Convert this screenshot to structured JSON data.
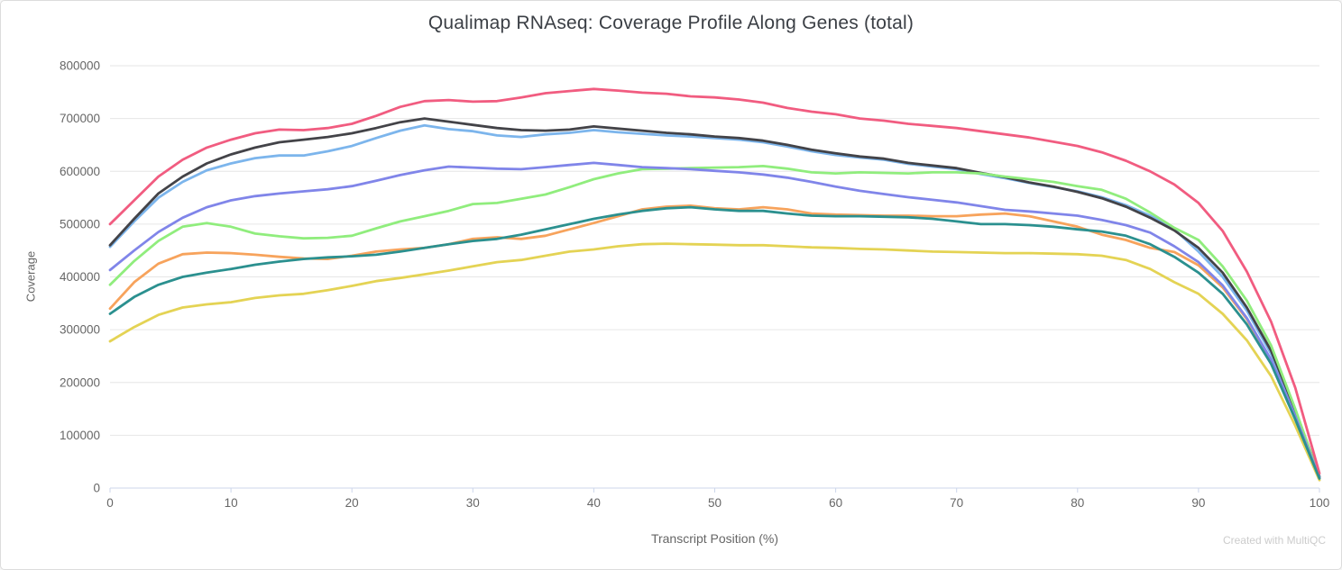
{
  "header": {
    "title": "Qualimap RNAseq: Coverage Profile Along Genes (total)"
  },
  "footer": {
    "watermark": "Created with MultiQC"
  },
  "colors": {
    "background": "#ffffff",
    "card_border": "#dcdcdc",
    "title": "#3b3f45",
    "grid": "#e6e6e6",
    "axis_line": "#ccd6eb",
    "tick_label": "#666666",
    "axis_title": "#666666",
    "watermark": "#cccccc"
  },
  "chart_data": {
    "type": "line",
    "title": "Qualimap RNAseq: Coverage Profile Along Genes (total)",
    "xlabel": "Transcript Position (%)",
    "ylabel": "Coverage",
    "xlim": [
      0,
      100
    ],
    "ylim": [
      0,
      800000
    ],
    "xticks": [
      0,
      10,
      20,
      30,
      40,
      50,
      60,
      70,
      80,
      90,
      100
    ],
    "yticks": [
      0,
      100000,
      200000,
      300000,
      400000,
      500000,
      600000,
      700000,
      800000
    ],
    "grid": "horizontal",
    "legend": "none",
    "line_width": 2.8,
    "x": [
      0,
      2,
      4,
      6,
      8,
      10,
      12,
      14,
      16,
      18,
      20,
      22,
      24,
      26,
      28,
      30,
      32,
      34,
      36,
      38,
      40,
      42,
      44,
      46,
      48,
      50,
      52,
      54,
      56,
      58,
      60,
      62,
      64,
      66,
      68,
      70,
      72,
      74,
      76,
      78,
      80,
      82,
      84,
      86,
      88,
      90,
      92,
      94,
      96,
      98,
      100
    ],
    "series": [
      {
        "id": "light-blue",
        "color": "#7cb5ec",
        "values": [
          457000,
          505000,
          550000,
          580000,
          602000,
          615000,
          625000,
          630000,
          630000,
          638000,
          648000,
          663000,
          677000,
          687000,
          680000,
          676000,
          668000,
          665000,
          670000,
          673000,
          678000,
          674000,
          671000,
          668000,
          666000,
          663000,
          660000,
          655000,
          647000,
          638000,
          631000,
          626000,
          622000,
          614000,
          609000,
          604000,
          595000,
          587000,
          578000,
          570000,
          562000,
          551000,
          536000,
          516000,
          490000,
          448000,
          400000,
          336000,
          254000,
          142000,
          20000
        ]
      },
      {
        "id": "black",
        "color": "#434348",
        "values": [
          460000,
          510000,
          558000,
          590000,
          615000,
          632000,
          645000,
          655000,
          660000,
          665000,
          672000,
          682000,
          693000,
          700000,
          694000,
          688000,
          682000,
          678000,
          677000,
          679000,
          685000,
          681000,
          677000,
          673000,
          670000,
          666000,
          663000,
          658000,
          650000,
          641000,
          634000,
          628000,
          624000,
          616000,
          611000,
          606000,
          597000,
          589000,
          579000,
          571000,
          561000,
          549000,
          533000,
          512000,
          488000,
          455000,
          408000,
          342000,
          260000,
          148000,
          22000
        ]
      },
      {
        "id": "green",
        "color": "#90ed7d",
        "values": [
          385000,
          430000,
          468000,
          495000,
          502000,
          495000,
          482000,
          477000,
          473000,
          474000,
          478000,
          492000,
          505000,
          515000,
          525000,
          538000,
          540000,
          548000,
          556000,
          570000,
          585000,
          596000,
          604000,
          605000,
          606000,
          607000,
          608000,
          610000,
          605000,
          598000,
          596000,
          598000,
          597000,
          596000,
          598000,
          598000,
          596000,
          590000,
          585000,
          580000,
          572000,
          565000,
          548000,
          522000,
          493000,
          470000,
          420000,
          355000,
          270000,
          150000,
          20000
        ]
      },
      {
        "id": "orange",
        "color": "#f7a35c",
        "values": [
          340000,
          390000,
          425000,
          443000,
          446000,
          445000,
          442000,
          438000,
          435000,
          434000,
          440000,
          448000,
          452000,
          455000,
          462000,
          472000,
          475000,
          472000,
          478000,
          490000,
          502000,
          515000,
          528000,
          533000,
          535000,
          530000,
          528000,
          532000,
          528000,
          520000,
          518000,
          517000,
          516000,
          516000,
          515000,
          515000,
          518000,
          520000,
          515000,
          505000,
          495000,
          480000,
          470000,
          455000,
          447000,
          422000,
          380000,
          320000,
          240000,
          132000,
          18000
        ]
      },
      {
        "id": "purple",
        "color": "#8085e9",
        "values": [
          413000,
          450000,
          485000,
          512000,
          532000,
          545000,
          553000,
          558000,
          562000,
          566000,
          572000,
          582000,
          593000,
          602000,
          609000,
          607000,
          605000,
          604000,
          608000,
          612000,
          616000,
          612000,
          608000,
          606000,
          604000,
          601000,
          598000,
          594000,
          588000,
          580000,
          571000,
          563000,
          557000,
          551000,
          546000,
          541000,
          534000,
          527000,
          524000,
          520000,
          516000,
          508000,
          498000,
          484000,
          458000,
          428000,
          384000,
          322000,
          243000,
          136000,
          20000
        ]
      },
      {
        "id": "pink",
        "color": "#f15c80",
        "values": [
          500000,
          545000,
          590000,
          622000,
          645000,
          660000,
          672000,
          679000,
          678000,
          682000,
          690000,
          705000,
          722000,
          733000,
          735000,
          732000,
          733000,
          740000,
          748000,
          752000,
          756000,
          753000,
          749000,
          747000,
          742000,
          740000,
          736000,
          730000,
          720000,
          713000,
          708000,
          700000,
          696000,
          690000,
          686000,
          682000,
          676000,
          670000,
          664000,
          656000,
          648000,
          636000,
          620000,
          600000,
          575000,
          540000,
          487000,
          410000,
          315000,
          190000,
          28000
        ]
      },
      {
        "id": "yellow",
        "color": "#e4d354",
        "values": [
          278000,
          305000,
          328000,
          342000,
          348000,
          352000,
          360000,
          365000,
          368000,
          375000,
          383000,
          392000,
          398000,
          405000,
          412000,
          420000,
          428000,
          432000,
          440000,
          448000,
          452000,
          458000,
          462000,
          463000,
          462000,
          461000,
          460000,
          460000,
          458000,
          456000,
          455000,
          453000,
          452000,
          450000,
          448000,
          447000,
          446000,
          445000,
          445000,
          444000,
          443000,
          440000,
          432000,
          415000,
          390000,
          368000,
          330000,
          280000,
          212000,
          118000,
          15000
        ]
      },
      {
        "id": "teal",
        "color": "#2b908f",
        "values": [
          330000,
          362000,
          385000,
          400000,
          408000,
          415000,
          423000,
          429000,
          434000,
          437000,
          439000,
          442000,
          448000,
          455000,
          462000,
          468000,
          472000,
          480000,
          490000,
          500000,
          510000,
          518000,
          525000,
          530000,
          532000,
          528000,
          525000,
          525000,
          520000,
          516000,
          515000,
          515000,
          514000,
          513000,
          510000,
          505000,
          500000,
          500000,
          498000,
          495000,
          490000,
          486000,
          478000,
          462000,
          438000,
          408000,
          368000,
          310000,
          235000,
          130000,
          18000
        ]
      }
    ]
  }
}
